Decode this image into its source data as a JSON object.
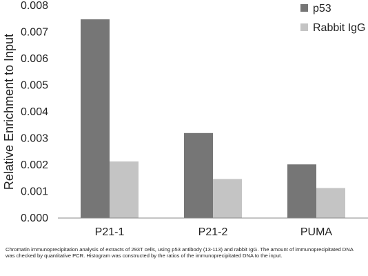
{
  "chart_data": {
    "type": "bar",
    "categories": [
      "P21-1",
      "P21-2",
      "PUMA"
    ],
    "series": [
      {
        "name": "p53",
        "values": [
          0.00748,
          0.0032,
          0.00202
        ],
        "color": "#767676"
      },
      {
        "name": "Rabbit IgG",
        "values": [
          0.00213,
          0.00147,
          0.00113
        ],
        "color": "#c4c4c4"
      }
    ],
    "ylabel": "Relative Enrichment to Input",
    "xlabel": "",
    "ylim": [
      0,
      0.008
    ],
    "yticks": [
      "0.000",
      "0.001",
      "0.002",
      "0.003",
      "0.004",
      "0.005",
      "0.006",
      "0.007",
      "0.008"
    ],
    "grid": false,
    "legend_position": "top-right"
  },
  "caption": "Chromatin immunoprecipitation analysis of extracts of 293T cells, using p53 antibody (13-113) and rabbit IgG. The amount of immunoprecipitated DNA was checked by quantitative PCR. Histogram was constructed by the ratios of the immunoprecipitated DNA to the input."
}
